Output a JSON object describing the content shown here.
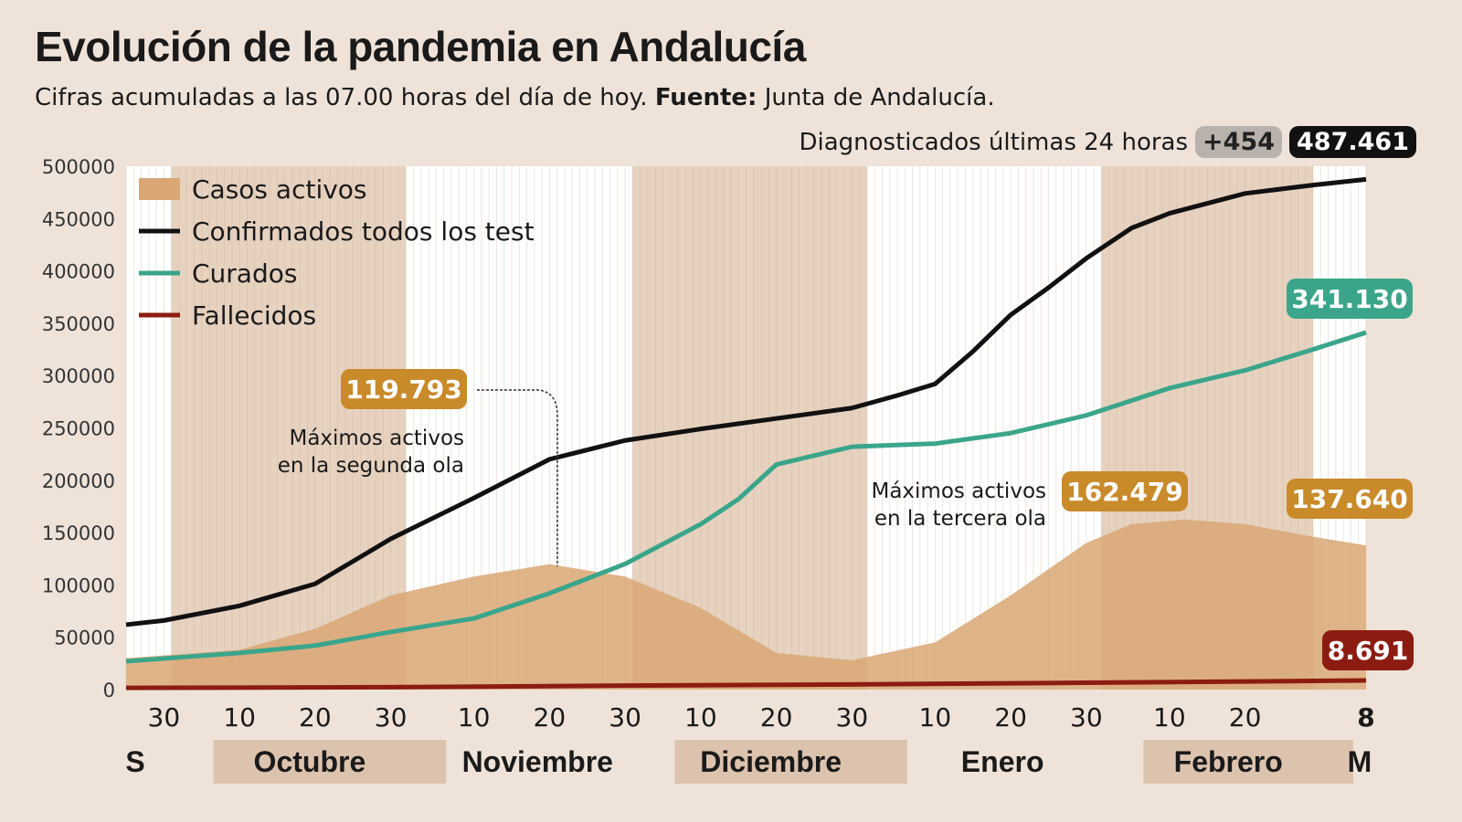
{
  "title": "Evolución de la pandemia en Andalucía",
  "subtitle": {
    "text": "Cifras acumuladas a las 07.00 horas del día de hoy.",
    "source_label": "Fuente:",
    "source": "Junta de Andalucía."
  },
  "diagnosed": {
    "label": "Diagnosticados últimas 24 horas",
    "delta": "+454",
    "total": "487.461"
  },
  "annotations": {
    "peak2_value": "119.793",
    "peak2_line1": "Máximos activos",
    "peak2_line2": "en la segunda ola",
    "peak3_value": "162.479",
    "peak3_line1": "Máximos activos",
    "peak3_line2": "en la tercera ola",
    "curados_last": "341.130",
    "activos_last": "137.640",
    "fallecidos_last": "8.691"
  },
  "colors": {
    "background": "#efe3d9",
    "activos": "#d9a774",
    "confirmados": "#111111",
    "curados": "#3aa58a",
    "fallecidos": "#8c1c12",
    "badge_activos": "#c98a2a",
    "shade": "#e6d2bf"
  },
  "chart_data": {
    "type": "line",
    "xlim": [
      "2020-09-25",
      "2021-03-08"
    ],
    "ylim": [
      0,
      500000
    ],
    "yticks": [
      0,
      50000,
      100000,
      150000,
      200000,
      250000,
      300000,
      350000,
      400000,
      450000,
      500000
    ],
    "ytick_labels": [
      "0",
      "50000",
      "100000",
      "150000",
      "200000",
      "250000",
      "300000",
      "350000",
      "400000",
      "450000",
      "500000"
    ],
    "xticks": [
      {
        "date": "2020-09-30",
        "label": "30"
      },
      {
        "date": "2020-10-10",
        "label": "10"
      },
      {
        "date": "2020-10-20",
        "label": "20"
      },
      {
        "date": "2020-10-30",
        "label": "30"
      },
      {
        "date": "2020-11-10",
        "label": "10"
      },
      {
        "date": "2020-11-20",
        "label": "20"
      },
      {
        "date": "2020-11-30",
        "label": "30"
      },
      {
        "date": "2020-12-10",
        "label": "10"
      },
      {
        "date": "2020-12-20",
        "label": "20"
      },
      {
        "date": "2020-12-30",
        "label": "30"
      },
      {
        "date": "2021-01-10",
        "label": "10"
      },
      {
        "date": "2021-01-20",
        "label": "20"
      },
      {
        "date": "2021-01-30",
        "label": "30"
      },
      {
        "date": "2021-02-10",
        "label": "10"
      },
      {
        "date": "2021-02-20",
        "label": "20"
      },
      {
        "date": "2021-03-08",
        "label": "8"
      }
    ],
    "months": [
      {
        "label": "S",
        "start": "2020-09-25",
        "end": "2020-10-01",
        "shaded": false
      },
      {
        "label": "Octubre",
        "start": "2020-10-01",
        "end": "2020-11-01",
        "shaded": true
      },
      {
        "label": "Noviembre",
        "start": "2020-11-01",
        "end": "2020-12-01",
        "shaded": false
      },
      {
        "label": "Diciembre",
        "start": "2020-12-01",
        "end": "2021-01-01",
        "shaded": true
      },
      {
        "label": "Enero",
        "start": "2021-01-01",
        "end": "2021-02-01",
        "shaded": false
      },
      {
        "label": "Febrero",
        "start": "2021-02-01",
        "end": "2021-03-01",
        "shaded": true
      },
      {
        "label": "M",
        "start": "2021-03-01",
        "end": "2021-03-08",
        "shaded": false
      }
    ],
    "legend_position": "top-left",
    "series": [
      {
        "name": "Casos activos",
        "kind": "area",
        "color": "#d9a774",
        "points": [
          [
            "2020-09-25",
            30000
          ],
          [
            "2020-10-10",
            38000
          ],
          [
            "2020-10-20",
            58000
          ],
          [
            "2020-10-30",
            90000
          ],
          [
            "2020-11-10",
            108000
          ],
          [
            "2020-11-20",
            119793
          ],
          [
            "2020-11-30",
            108000
          ],
          [
            "2020-12-10",
            78000
          ],
          [
            "2020-12-20",
            35000
          ],
          [
            "2020-12-30",
            28000
          ],
          [
            "2021-01-10",
            45000
          ],
          [
            "2021-01-20",
            90000
          ],
          [
            "2021-01-30",
            140000
          ],
          [
            "2021-02-05",
            158000
          ],
          [
            "2021-02-12",
            162479
          ],
          [
            "2021-02-20",
            158000
          ],
          [
            "2021-03-01",
            146000
          ],
          [
            "2021-03-08",
            137640
          ]
        ]
      },
      {
        "name": "Confirmados todos los test",
        "kind": "line",
        "color": "#111111",
        "points": [
          [
            "2020-09-25",
            62000
          ],
          [
            "2020-09-30",
            66000
          ],
          [
            "2020-10-10",
            80000
          ],
          [
            "2020-10-20",
            101000
          ],
          [
            "2020-10-30",
            144000
          ],
          [
            "2020-11-10",
            183000
          ],
          [
            "2020-11-20",
            220000
          ],
          [
            "2020-11-30",
            238000
          ],
          [
            "2020-12-10",
            249000
          ],
          [
            "2020-12-20",
            259000
          ],
          [
            "2020-12-30",
            269000
          ],
          [
            "2021-01-05",
            281000
          ],
          [
            "2021-01-10",
            292000
          ],
          [
            "2021-01-15",
            323000
          ],
          [
            "2021-01-20",
            358000
          ],
          [
            "2021-01-25",
            384000
          ],
          [
            "2021-01-30",
            412000
          ],
          [
            "2021-02-05",
            441000
          ],
          [
            "2021-02-10",
            455000
          ],
          [
            "2021-02-20",
            474000
          ],
          [
            "2021-03-01",
            482000
          ],
          [
            "2021-03-08",
            487461
          ]
        ]
      },
      {
        "name": "Curados",
        "kind": "line",
        "color": "#3aa58a",
        "points": [
          [
            "2020-09-25",
            27000
          ],
          [
            "2020-10-10",
            35000
          ],
          [
            "2020-10-20",
            42000
          ],
          [
            "2020-10-30",
            55000
          ],
          [
            "2020-11-10",
            68000
          ],
          [
            "2020-11-20",
            92000
          ],
          [
            "2020-11-30",
            120000
          ],
          [
            "2020-12-10",
            158000
          ],
          [
            "2020-12-15",
            182000
          ],
          [
            "2020-12-20",
            215000
          ],
          [
            "2020-12-30",
            232000
          ],
          [
            "2021-01-10",
            235000
          ],
          [
            "2021-01-20",
            245000
          ],
          [
            "2021-01-30",
            262000
          ],
          [
            "2021-02-10",
            288000
          ],
          [
            "2021-02-20",
            305000
          ],
          [
            "2021-03-01",
            325000
          ],
          [
            "2021-03-08",
            341130
          ]
        ]
      },
      {
        "name": "Fallecidos",
        "kind": "line",
        "color": "#8c1c12",
        "points": [
          [
            "2020-09-25",
            1600
          ],
          [
            "2020-10-30",
            2300
          ],
          [
            "2020-11-30",
            3800
          ],
          [
            "2020-12-30",
            4900
          ],
          [
            "2021-01-30",
            6500
          ],
          [
            "2021-03-08",
            8691
          ]
        ]
      }
    ]
  }
}
